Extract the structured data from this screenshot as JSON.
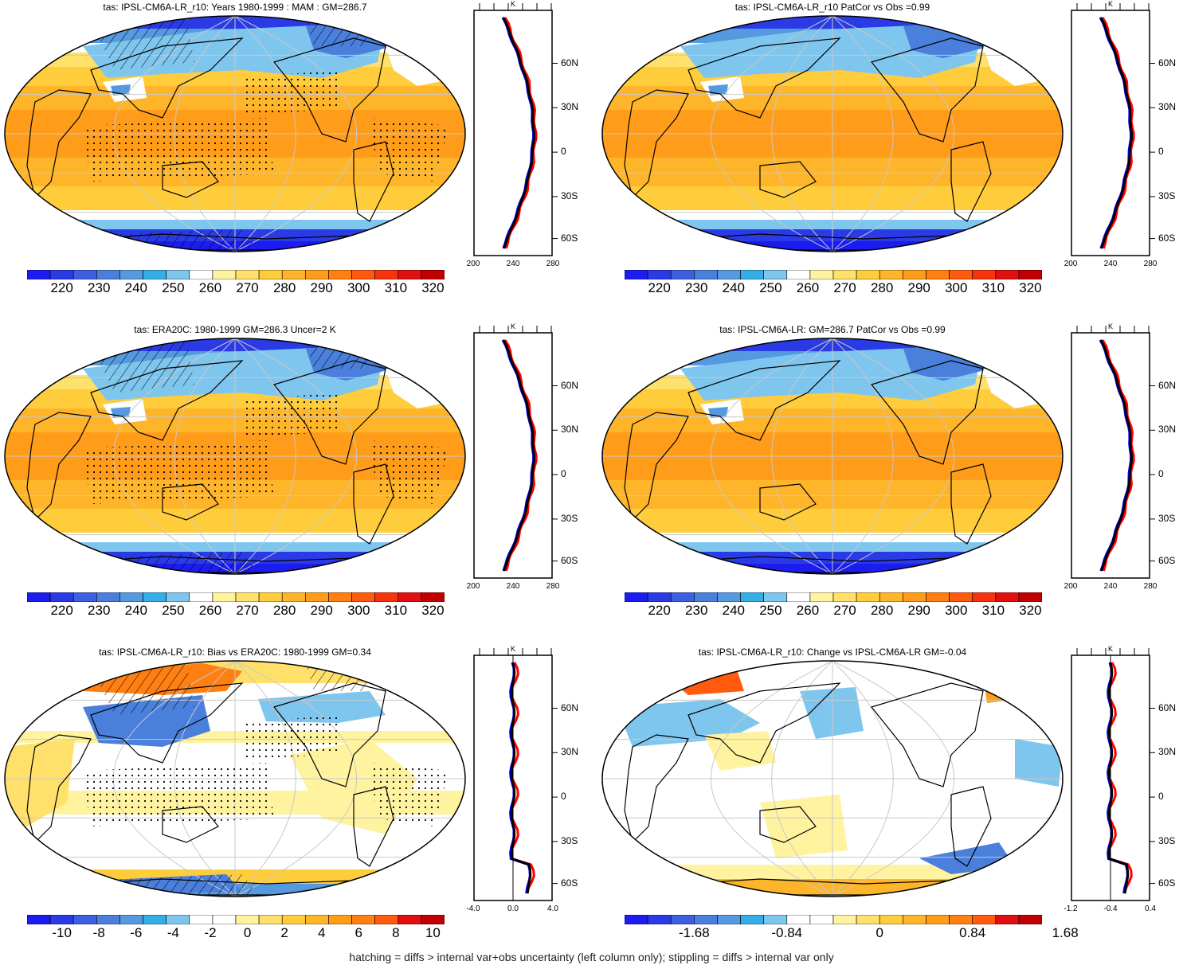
{
  "panels": [
    {
      "id": "p1",
      "title": "tas: IPSL-CM6A-LR_r10: Years 1980-1999 : MAM : GM=286.7",
      "kind": "abs",
      "hatch": true,
      "stipple": true,
      "colorbar": {
        "labels": [
          "220",
          "230",
          "240",
          "250",
          "260",
          "270",
          "280",
          "290",
          "300",
          "310",
          "320"
        ]
      },
      "profile": {
        "lat_labels": [
          "60N",
          "30N",
          "0",
          "30S",
          "60S"
        ],
        "x_labels": [
          "200",
          "240",
          "280"
        ],
        "unit": "K"
      }
    },
    {
      "id": "p2",
      "title": "tas: IPSL-CM6A-LR_r10 PatCor vs Obs =0.99",
      "kind": "abs",
      "hatch": false,
      "stipple": false,
      "colorbar": {
        "labels": [
          "220",
          "230",
          "240",
          "250",
          "260",
          "270",
          "280",
          "290",
          "300",
          "310",
          "320"
        ]
      },
      "profile": {
        "lat_labels": [
          "60N",
          "30N",
          "0",
          "30S",
          "60S"
        ],
        "x_labels": [
          "200",
          "240",
          "280"
        ],
        "unit": "K"
      }
    },
    {
      "id": "p3",
      "title": "tas: ERA20C: 1980-1999 GM=286.3 Uncer=2 K",
      "kind": "abs",
      "hatch": true,
      "stipple": true,
      "colorbar": {
        "labels": [
          "220",
          "230",
          "240",
          "250",
          "260",
          "270",
          "280",
          "290",
          "300",
          "310",
          "320"
        ]
      },
      "profile": {
        "lat_labels": [
          "60N",
          "30N",
          "0",
          "30S",
          "60S"
        ],
        "x_labels": [
          "200",
          "240",
          "280"
        ],
        "unit": "K"
      }
    },
    {
      "id": "p4",
      "title": "tas: IPSL-CM6A-LR: GM=286.7 PatCor vs Obs =0.99",
      "kind": "abs",
      "hatch": false,
      "stipple": false,
      "colorbar": {
        "labels": [
          "220",
          "230",
          "240",
          "250",
          "260",
          "270",
          "280",
          "290",
          "300",
          "310",
          "320"
        ]
      },
      "profile": {
        "lat_labels": [
          "60N",
          "30N",
          "0",
          "30S",
          "60S"
        ],
        "x_labels": [
          "200",
          "240",
          "280"
        ],
        "unit": "K"
      }
    },
    {
      "id": "p5",
      "title": "tas: IPSL-CM6A-LR_r10: Bias vs ERA20C: 1980-1999 GM=0.34",
      "kind": "bias",
      "hatch": true,
      "stipple": true,
      "colorbar": {
        "labels": [
          "-10",
          "-8",
          "-6",
          "-4",
          "-2",
          "0",
          "2",
          "4",
          "6",
          "8",
          "10"
        ]
      },
      "profile": {
        "lat_labels": [
          "60N",
          "30N",
          "0",
          "30S",
          "60S"
        ],
        "x_labels": [
          "-4.0",
          "0.0",
          "4.0"
        ],
        "unit": "K"
      }
    },
    {
      "id": "p6",
      "title": "tas: IPSL-CM6A-LR_r10: Change vs IPSL-CM6A-LR GM=-0.04",
      "kind": "change",
      "hatch": false,
      "stipple": false,
      "colorbar": {
        "labels": [
          "-1.68",
          "-0.84",
          "0",
          "0.84",
          "1.68"
        ]
      },
      "profile": {
        "lat_labels": [
          "60N",
          "30N",
          "0",
          "30S",
          "60S"
        ],
        "x_labels": [
          "-1.2",
          "-0.4",
          "0.4"
        ],
        "unit": "K"
      }
    }
  ],
  "palettes": {
    "abs": [
      "#1c1cf0",
      "#2a3be6",
      "#3d5fe0",
      "#4a7fdc",
      "#5599e0",
      "#35aee8",
      "#7fc6ee",
      "#ffffff",
      "#fff3a0",
      "#ffe06a",
      "#ffcd3c",
      "#ffb52a",
      "#ff9d1a",
      "#ff7f12",
      "#ff5a0e",
      "#f5330c",
      "#e01010",
      "#c00000"
    ],
    "bias": [
      "#1c1cf0",
      "#2a3be6",
      "#3d5fe0",
      "#4a7fdc",
      "#5599e0",
      "#35aee8",
      "#7fc6ee",
      "#ffffff",
      "#ffffff",
      "#fff3a0",
      "#ffe06a",
      "#ffcd3c",
      "#ffb52a",
      "#ff9d1a",
      "#ff7f12",
      "#ff5a0e",
      "#e01010",
      "#c00000"
    ],
    "change": [
      "#1c1cf0",
      "#2a3be6",
      "#3d5fe0",
      "#4a7fdc",
      "#5599e0",
      "#35aee8",
      "#7fc6ee",
      "#ffffff",
      "#ffffff",
      "#fff3a0",
      "#ffe06a",
      "#ffcd3c",
      "#ffb52a",
      "#ff9d1a",
      "#ff7f12",
      "#ff5a0e",
      "#e01010",
      "#c00000"
    ]
  },
  "profile_colors": {
    "model": "#ff0000",
    "obs": "#0000ff",
    "ens": "#000000"
  },
  "footnote": "hatching = diffs > internal var+obs uncertainty (left column only); stippling = diffs > internal var only"
}
